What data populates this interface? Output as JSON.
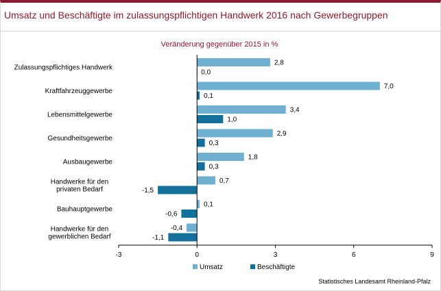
{
  "header": {
    "title": "Umsatz und Beschäftigte im zulassungspflichtigen Handwerk 2016 nach Gewerbegruppen"
  },
  "source": "Statistisches Landesamt Rheinland-Pfalz",
  "colors": {
    "accent": "#8b1a2e",
    "umsatz": "#6fafd2",
    "beschaeftigte": "#13709b"
  },
  "chart_data": {
    "type": "bar",
    "orientation": "horizontal",
    "subtitle": "Veränderung gegenüber 2015 in %",
    "categories": [
      [
        "Zulassungspflichtiges Handwerk"
      ],
      [
        "Kraftfahrzeuggewerbe"
      ],
      [
        "Lebensmittelgewerbe"
      ],
      [
        "Gesundheitsgewerbe"
      ],
      [
        "Ausbaugewerbe"
      ],
      [
        "Handwerke für den",
        "privaten Bedarf"
      ],
      [
        "Bauhauptgewerbe"
      ],
      [
        "Handwerke für den",
        "gewerblichen Bedarf"
      ]
    ],
    "series": [
      {
        "name": "Umsatz",
        "values": [
          2.8,
          7.0,
          3.4,
          2.9,
          1.8,
          0.7,
          0.1,
          -0.4
        ],
        "labels": [
          "2,8",
          "7,0",
          "3,4",
          "2,9",
          "1,8",
          "0,7",
          "0,1",
          "-0,4"
        ]
      },
      {
        "name": "Beschäftigte",
        "values": [
          0.0,
          0.1,
          1.0,
          0.3,
          0.3,
          -1.5,
          -0.6,
          -1.1
        ],
        "labels": [
          "0,0",
          "0,1",
          "1,0",
          "0,3",
          "0,3",
          "-1,5",
          "-0,6",
          "-1,1"
        ]
      }
    ],
    "xlim": [
      -3,
      9
    ],
    "xticks": [
      -3,
      0,
      3,
      6,
      9
    ],
    "xtick_labels": [
      "-3",
      "0",
      "3",
      "6",
      "9"
    ],
    "grid": false,
    "legend_position": "bottom"
  }
}
